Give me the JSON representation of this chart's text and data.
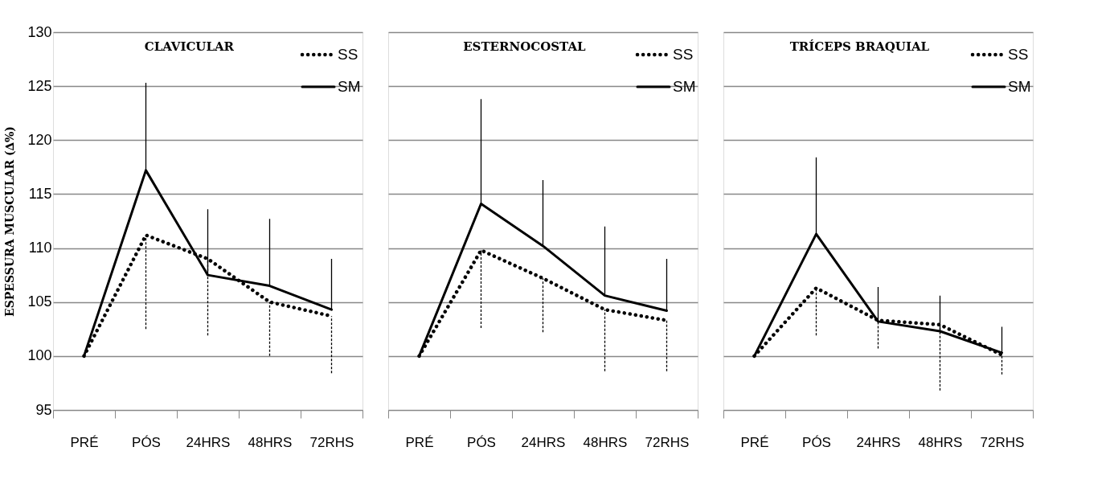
{
  "chart_data": [
    {
      "type": "line",
      "title": "CLAVICULAR",
      "ylabel": "ESPESSURA MUSCULAR  (∆%)",
      "categories": [
        "PRÉ",
        "PÓS",
        "24HRS",
        "48HRS",
        "72RHS"
      ],
      "ylim": [
        95,
        130
      ],
      "yticks": [
        95,
        100,
        105,
        110,
        115,
        120,
        125,
        130
      ],
      "grid": "y",
      "legend": "top right",
      "series": [
        {
          "name": "SS",
          "color": "#000000",
          "line_style": "dotted",
          "values": [
            100,
            111.2,
            109.0,
            105.0,
            103.7
          ],
          "errors": [
            null,
            [
              102.5,
              111.2
            ],
            [
              101.9,
              109.0
            ],
            [
              100.0,
              105.0
            ],
            [
              98.4,
              103.7
            ]
          ]
        },
        {
          "name": "SM",
          "color": "#000000",
          "line_style": "solid",
          "values": [
            100,
            117.2,
            107.5,
            106.5,
            104.3
          ],
          "errors": [
            null,
            [
              117.2,
              125.3
            ],
            [
              107.5,
              113.6
            ],
            [
              106.5,
              112.7
            ],
            [
              104.3,
              109.0
            ]
          ]
        }
      ]
    },
    {
      "type": "line",
      "title": "ESTERNOCOSTAL",
      "categories": [
        "PRÉ",
        "PÓS",
        "24HRS",
        "48HRS",
        "72RHS"
      ],
      "ylim": [
        95,
        130
      ],
      "yticks": [
        95,
        100,
        105,
        110,
        115,
        120,
        125,
        130
      ],
      "grid": "y",
      "legend": "top right",
      "tick_labels": "x",
      "series": [
        {
          "name": "SS",
          "color": "#000000",
          "line_style": "dotted",
          "values": [
            100,
            109.8,
            107.2,
            104.3,
            103.3
          ],
          "errors": [
            null,
            [
              102.6,
              109.8
            ],
            [
              102.2,
              107.2
            ],
            [
              98.6,
              104.3
            ],
            [
              98.6,
              103.3
            ]
          ]
        },
        {
          "name": "SM",
          "color": "#000000",
          "line_style": "solid",
          "values": [
            100,
            114.1,
            110.2,
            105.6,
            104.2
          ],
          "errors": [
            null,
            [
              114.1,
              123.8
            ],
            [
              110.2,
              116.3
            ],
            [
              105.6,
              112.0
            ],
            [
              104.2,
              109.0
            ]
          ]
        }
      ]
    },
    {
      "type": "line",
      "title": "TRÍCEPS BRAQUIAL",
      "categories": [
        "PRÉ",
        "PÓS",
        "24HRS",
        "48HRS",
        "72RHS"
      ],
      "ylim": [
        95,
        130
      ],
      "yticks": [
        95,
        100,
        105,
        110,
        115,
        120,
        125,
        130
      ],
      "grid": "y",
      "legend": "top right",
      "tick_labels": "x",
      "series": [
        {
          "name": "SS",
          "color": "#000000",
          "line_style": "dotted",
          "values": [
            100,
            106.3,
            103.3,
            102.9,
            100.1
          ],
          "errors": [
            null,
            [
              101.9,
              106.3
            ],
            [
              100.7,
              103.3
            ],
            [
              96.8,
              102.9
            ],
            [
              98.3,
              100.1
            ]
          ]
        },
        {
          "name": "SM",
          "color": "#000000",
          "line_style": "solid",
          "values": [
            100,
            111.3,
            103.2,
            102.3,
            100.3
          ],
          "errors": [
            null,
            [
              111.3,
              118.4
            ],
            [
              103.2,
              106.4
            ],
            [
              102.3,
              105.6
            ],
            [
              100.3,
              102.7
            ]
          ]
        }
      ]
    }
  ]
}
